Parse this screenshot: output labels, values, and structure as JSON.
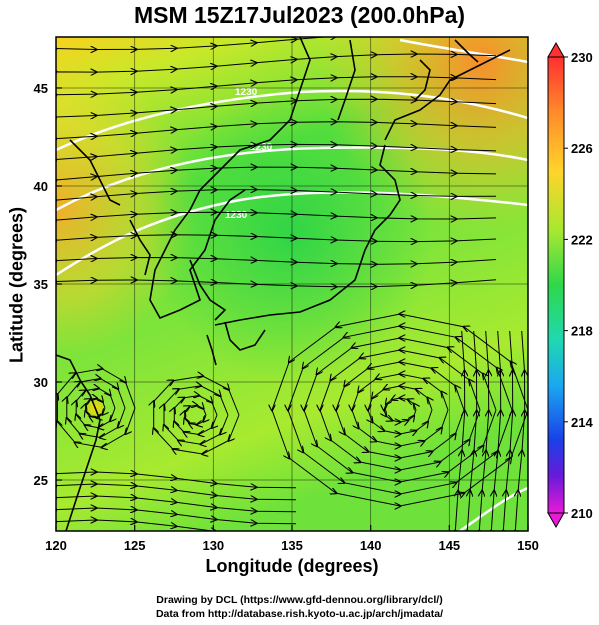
{
  "title": "MSM 15Z17Jul2023 (200.0hPa)",
  "axes": {
    "xlabel": "Longitude (degrees)",
    "ylabel": "Latitude  (degrees)",
    "x_ticks": [
      "120",
      "125",
      "130",
      "135",
      "140",
      "145",
      "150"
    ],
    "y_ticks": [
      "25",
      "30",
      "35",
      "40",
      "45"
    ]
  },
  "map": {
    "lon_range": [
      120,
      150
    ],
    "lat_range": [
      22.4,
      47.6
    ],
    "contour_labels": [
      "1230",
      "1230",
      "1230"
    ]
  },
  "colorbar": {
    "labels": [
      "230",
      "226",
      "222",
      "218",
      "214",
      "210"
    ]
  },
  "credits": {
    "line1": "Drawing by DCL (https://www.gfd-dennou.org/library/dcl/)",
    "line2": "Data from http://database.rish.kyoto-u.ac.jp/arch/jmadata/"
  }
}
